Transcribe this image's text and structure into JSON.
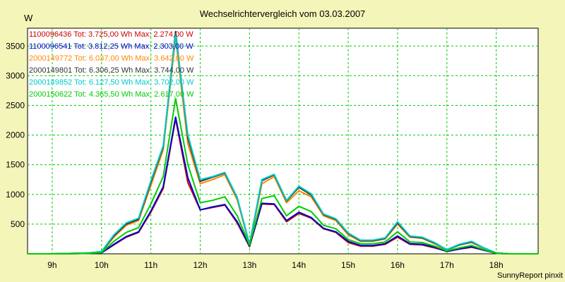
{
  "chart_data": {
    "type": "line",
    "title": "Wechselrichtervergleich vom 03.03.2007",
    "ylabel": "W",
    "xlabel": "",
    "footer": "SunnyReport pinxit",
    "x_range": [
      8.5,
      18.85
    ],
    "y_range": [
      0,
      3800
    ],
    "grid": true,
    "legend_position": "top-left",
    "x_ticks": [
      {
        "value": 9,
        "label": "9h"
      },
      {
        "value": 10,
        "label": "10h"
      },
      {
        "value": 11,
        "label": "11h"
      },
      {
        "value": 12,
        "label": "12h"
      },
      {
        "value": 13,
        "label": "13h"
      },
      {
        "value": 14,
        "label": "14h"
      },
      {
        "value": 15,
        "label": "15h"
      },
      {
        "value": 16,
        "label": "16h"
      },
      {
        "value": 17,
        "label": "17h"
      },
      {
        "value": 18,
        "label": "18h"
      }
    ],
    "y_ticks": [
      {
        "value": 500,
        "label": "500"
      },
      {
        "value": 1000,
        "label": "1000"
      },
      {
        "value": 1500,
        "label": "1500"
      },
      {
        "value": 2000,
        "label": "2000"
      },
      {
        "value": 2500,
        "label": "2500"
      },
      {
        "value": 3000,
        "label": "3000"
      },
      {
        "value": 3500,
        "label": "3500"
      }
    ],
    "x": [
      8.5,
      9.0,
      9.5,
      9.75,
      10.0,
      10.25,
      10.5,
      10.75,
      11.0,
      11.25,
      11.5,
      11.75,
      12.0,
      12.25,
      12.5,
      12.75,
      13.0,
      13.25,
      13.5,
      13.75,
      14.0,
      14.25,
      14.5,
      14.75,
      15.0,
      15.25,
      15.5,
      15.75,
      16.0,
      16.25,
      16.5,
      16.75,
      17.0,
      17.25,
      17.5,
      17.75,
      18.0,
      18.25,
      18.5,
      18.85
    ],
    "series": [
      {
        "name": "1100096436",
        "legend": "1100096436  Tot: 3.725,00 Wh  Max: 2.274,00 W",
        "color": "#cc0000",
        "values": [
          0,
          0,
          5,
          10,
          15,
          150,
          280,
          360,
          700,
          1100,
          2274,
          1200,
          740,
          780,
          820,
          520,
          120,
          840,
          830,
          540,
          680,
          600,
          420,
          360,
          190,
          130,
          130,
          160,
          280,
          160,
          150,
          100,
          40,
          80,
          110,
          60,
          10,
          0,
          0,
          0
        ]
      },
      {
        "name": "1100096541",
        "legend": "1100096541  Tot: 3.812,25 Wh  Max: 2.303,00 W",
        "color": "#0000cc",
        "values": [
          0,
          0,
          5,
          10,
          15,
          160,
          290,
          370,
          720,
          1130,
          2303,
          1280,
          740,
          790,
          830,
          540,
          130,
          850,
          840,
          560,
          700,
          610,
          430,
          370,
          210,
          140,
          140,
          170,
          300,
          170,
          160,
          110,
          40,
          80,
          120,
          60,
          10,
          0,
          0,
          0
        ]
      },
      {
        "name": "2000149772",
        "legend": "2000149772  Tot: 6.037,00 Wh  Max: 3.642,00 W",
        "color": "#ff8800",
        "values": [
          0,
          0,
          10,
          15,
          30,
          280,
          480,
          560,
          1150,
          1750,
          3642,
          1850,
          1180,
          1250,
          1330,
          910,
          150,
          1180,
          1300,
          860,
          1060,
          960,
          640,
          560,
          320,
          210,
          210,
          250,
          500,
          280,
          260,
          170,
          60,
          150,
          190,
          90,
          15,
          0,
          0,
          0
        ]
      },
      {
        "name": "2000149801",
        "legend": "2000149801  Tot: 6.306,25 Wh  Max: 3.744,00 W",
        "color": "#333333",
        "values": [
          0,
          0,
          10,
          15,
          35,
          300,
          500,
          580,
          1200,
          1800,
          3744,
          1950,
          1220,
          1290,
          1360,
          940,
          160,
          1230,
          1330,
          890,
          1120,
          990,
          660,
          580,
          340,
          220,
          220,
          260,
          520,
          290,
          270,
          180,
          70,
          150,
          200,
          100,
          15,
          0,
          0,
          0
        ]
      },
      {
        "name": "2000149852",
        "legend": "2000149852  Tot: 6.127,50 Wh  Max: 3.702,00 W",
        "color": "#00cccc",
        "values": [
          0,
          0,
          10,
          15,
          40,
          320,
          520,
          600,
          1230,
          1820,
          3702,
          2000,
          1250,
          1300,
          1370,
          950,
          160,
          1250,
          1340,
          900,
          1140,
          1010,
          670,
          590,
          350,
          230,
          230,
          270,
          540,
          300,
          280,
          190,
          70,
          160,
          210,
          100,
          15,
          0,
          0,
          0
        ]
      },
      {
        "name": "2000150622",
        "legend": "2000150622  Tot: 4.365,50 Wh  Max: 2.617,00 W",
        "color": "#00cc00",
        "values": [
          0,
          0,
          5,
          10,
          20,
          210,
          360,
          440,
          840,
          1300,
          2617,
          1500,
          860,
          900,
          960,
          640,
          150,
          930,
          980,
          640,
          800,
          710,
          480,
          420,
          240,
          170,
          170,
          200,
          370,
          200,
          190,
          130,
          50,
          100,
          140,
          70,
          10,
          0,
          0,
          0
        ]
      }
    ]
  }
}
